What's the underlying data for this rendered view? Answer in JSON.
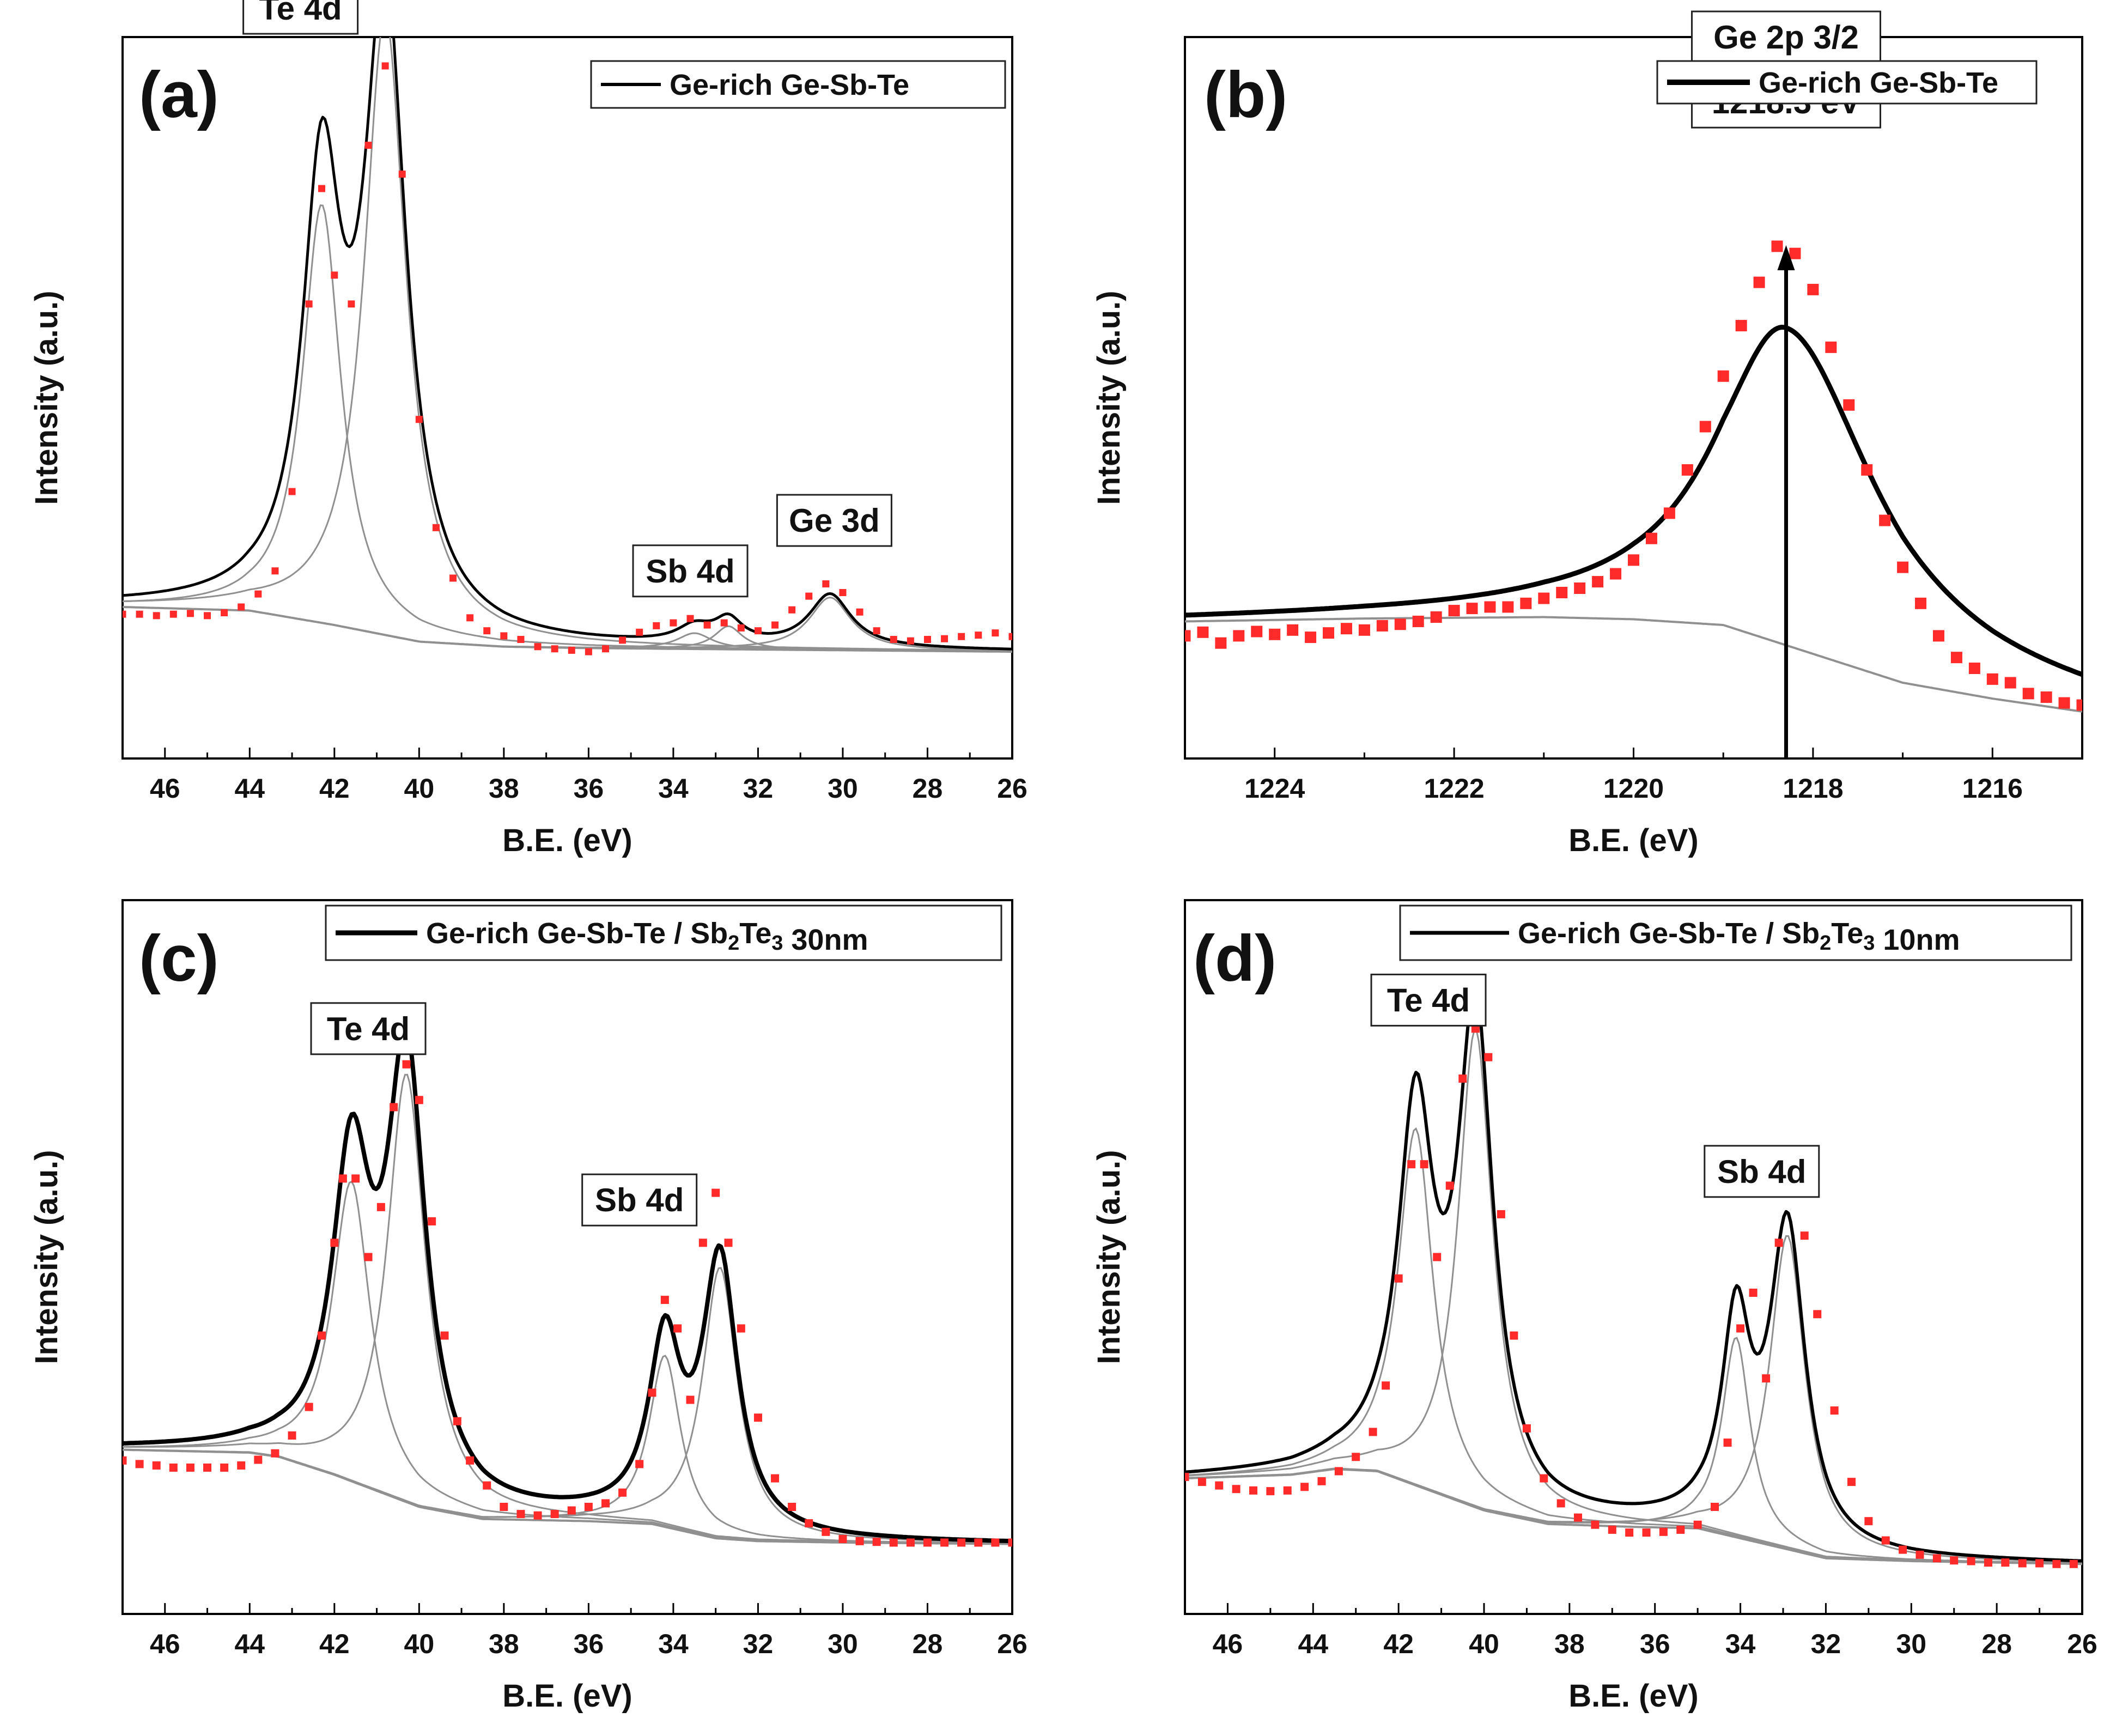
{
  "figure": {
    "background": "#ffffff",
    "marker_color": "#ff2a2a",
    "fit_color": "#000000",
    "component_color": "#909090"
  },
  "chart_data": [
    {
      "panel": "(a)",
      "type": "line",
      "xlabel": "B.E. (eV)",
      "ylabel": "Intensity (a.u.)",
      "xlim": [
        47,
        26
      ],
      "ylim": [
        0,
        100
      ],
      "x_ticks": [
        46,
        44,
        42,
        40,
        38,
        36,
        34,
        32,
        30,
        28,
        26
      ],
      "legend": "Ge-rich Ge-Sb-Te",
      "annotations": [
        {
          "text": "Te 4d",
          "x": 42.8,
          "y": 104
        },
        {
          "text": "Sb 4d",
          "x": 33.6,
          "y": 26
        },
        {
          "text": "Ge 3d",
          "x": 30.2,
          "y": 33
        }
      ],
      "background_curve": {
        "x": [
          47,
          44,
          42,
          40,
          38,
          36,
          34,
          32,
          30,
          28,
          26
        ],
        "y": [
          21,
          20.5,
          18.5,
          16.2,
          15.5,
          15.3,
          15.2,
          15.1,
          15,
          14.9,
          14.8
        ]
      },
      "components": [
        {
          "center": 42.3,
          "height": 58,
          "width": 0.55
        },
        {
          "center": 40.8,
          "height": 86,
          "width": 0.6
        },
        {
          "center": 33.5,
          "height": 2.2,
          "width": 0.5
        },
        {
          "center": 32.7,
          "height": 3.2,
          "width": 0.4
        },
        {
          "center": 30.3,
          "height": 7.3,
          "width": 0.6
        }
      ],
      "data_points": {
        "x": [
          47,
          46.6,
          46.2,
          45.8,
          45.4,
          45,
          44.6,
          44.2,
          43.8,
          43.4,
          43,
          42.6,
          42.3,
          42,
          41.6,
          41.2,
          40.8,
          40.4,
          40,
          39.6,
          39.2,
          38.8,
          38.4,
          38,
          37.6,
          37.2,
          36.8,
          36.4,
          36,
          35.6,
          35.2,
          34.8,
          34.4,
          34,
          33.6,
          33.2,
          32.8,
          32.4,
          32,
          31.6,
          31.2,
          30.8,
          30.4,
          30,
          29.6,
          29.2,
          28.8,
          28.4,
          28,
          27.6,
          27.2,
          26.8,
          26.4,
          26
        ],
        "y": [
          20,
          20,
          19.8,
          20,
          20.1,
          19.8,
          20.2,
          21,
          22.8,
          26,
          37,
          63,
          79,
          67,
          63,
          85,
          96,
          81,
          47,
          32,
          25,
          19.5,
          17.7,
          17,
          16.5,
          15.5,
          15.2,
          15,
          14.8,
          15.2,
          16.4,
          17.5,
          18.4,
          18.8,
          19.4,
          18.5,
          18.8,
          18.1,
          17.7,
          18.5,
          20.6,
          22.5,
          24.2,
          23,
          20.3,
          17.7,
          16.5,
          16.3,
          16.5,
          16.6,
          16.9,
          17.1,
          17.4,
          16.9
        ]
      }
    },
    {
      "panel": "(b)",
      "type": "line",
      "xlabel": "B.E. (eV)",
      "ylabel": "Intensity (a.u.)",
      "xlim": [
        1225,
        1215
      ],
      "ylim": [
        0,
        100
      ],
      "x_ticks": [
        1224,
        1222,
        1220,
        1218,
        1216
      ],
      "legend": "Ge-rich Ge-Sb-Te",
      "annotations": [
        {
          "text": "Ge 2p 3/2",
          "x": 1218.3,
          "y": 100
        },
        {
          "text": "1218.3 eV",
          "x": 1218.3,
          "y": 91
        }
      ],
      "peak_arrow": {
        "x": 1218.3,
        "y_from": 0,
        "y_to": 71
      },
      "background_curve": {
        "x": [
          1225,
          1223,
          1221,
          1220,
          1219,
          1218,
          1217,
          1216,
          1215
        ],
        "y": [
          19,
          19.4,
          19.6,
          19.3,
          18.5,
          14.5,
          10.5,
          8.3,
          6.5
        ]
      },
      "components": [
        {
          "center": 1218.3,
          "height": 44,
          "width": 0.95,
          "tail_right": 1.2
        }
      ],
      "data_points": {
        "x": [
          1225,
          1224.8,
          1224.6,
          1224.4,
          1224.2,
          1224,
          1223.8,
          1223.6,
          1223.4,
          1223.2,
          1223,
          1222.8,
          1222.6,
          1222.4,
          1222.2,
          1222,
          1221.8,
          1221.6,
          1221.4,
          1221.2,
          1221,
          1220.8,
          1220.6,
          1220.4,
          1220.2,
          1220,
          1219.8,
          1219.6,
          1219.4,
          1219.2,
          1219,
          1218.8,
          1218.6,
          1218.4,
          1218.2,
          1218,
          1217.8,
          1217.6,
          1217.4,
          1217.2,
          1217,
          1216.8,
          1216.6,
          1216.4,
          1216.2,
          1216,
          1215.8,
          1215.6,
          1215.4,
          1215.2,
          1215
        ],
        "y": [
          17,
          17.5,
          16,
          17,
          17.6,
          17.2,
          17.8,
          16.8,
          17.4,
          18,
          17.8,
          18.4,
          18.6,
          19,
          19.6,
          20.5,
          20.8,
          21,
          21,
          21.5,
          22.2,
          23,
          23.6,
          24.5,
          25.6,
          27.5,
          30.5,
          34,
          40,
          46,
          53,
          60,
          66,
          71,
          70,
          65,
          57,
          49,
          40,
          33,
          26.5,
          21.5,
          17,
          14,
          12.5,
          11,
          10.5,
          9,
          8.5,
          7.7,
          7.4
        ]
      }
    },
    {
      "panel": "(c)",
      "type": "line",
      "xlabel": "B.E. (eV)",
      "ylabel": "Intensity (a.u.)",
      "xlim": [
        47,
        26
      ],
      "ylim": [
        0,
        100
      ],
      "x_ticks": [
        46,
        44,
        42,
        40,
        38,
        36,
        34,
        32,
        30,
        28,
        26
      ],
      "legend": "Ge-rich Ge-Sb-Te / Sb2Te3 30nm",
      "annotations": [
        {
          "text": "Te 4d",
          "x": 41.2,
          "y": 82
        },
        {
          "text": "Sb 4d",
          "x": 34.8,
          "y": 58
        }
      ],
      "background_curve": {
        "x": [
          47,
          44,
          43.3,
          42,
          40,
          38.5,
          36,
          34.5,
          33,
          32,
          30,
          28,
          26
        ],
        "y": [
          23,
          22.6,
          22,
          19.5,
          15,
          13.3,
          13,
          12.6,
          10.6,
          10.2,
          10,
          9.9,
          9.8
        ]
      },
      "components": [
        {
          "center": 41.6,
          "height": 42,
          "width": 0.55
        },
        {
          "center": 40.3,
          "height": 60,
          "width": 0.55
        },
        {
          "center": 34.2,
          "height": 24,
          "width": 0.45
        },
        {
          "center": 32.9,
          "height": 38,
          "width": 0.5
        }
      ],
      "data_points": {
        "x": [
          47,
          46.6,
          46.2,
          45.8,
          45.4,
          45,
          44.6,
          44.2,
          43.8,
          43.4,
          43,
          42.6,
          42.3,
          42,
          41.8,
          41.5,
          41.2,
          40.9,
          40.6,
          40.3,
          40,
          39.7,
          39.4,
          39.1,
          38.8,
          38.4,
          38,
          37.6,
          37.2,
          36.8,
          36.4,
          36,
          35.6,
          35.2,
          34.8,
          34.5,
          34.2,
          33.9,
          33.6,
          33.3,
          33,
          32.7,
          32.4,
          32,
          31.6,
          31.2,
          30.8,
          30.4,
          30,
          29.6,
          29.2,
          28.8,
          28.4,
          28,
          27.6,
          27.2,
          26.8,
          26.4,
          26
        ],
        "y": [
          21.5,
          21,
          20.8,
          20.5,
          20.5,
          20.5,
          20.5,
          20.8,
          21.6,
          22.5,
          25,
          29,
          39,
          52,
          61,
          61,
          50,
          57,
          71,
          77,
          72,
          55,
          39,
          27,
          21.5,
          18,
          15,
          14,
          13.8,
          14,
          14.5,
          15,
          15.5,
          17,
          21,
          31,
          44,
          40,
          30,
          52,
          59,
          52,
          40,
          27.5,
          19,
          15,
          12.7,
          11.5,
          10.5,
          10.2,
          10.1,
          10,
          10,
          10,
          10,
          10,
          10,
          10,
          10
        ]
      }
    },
    {
      "panel": "(d)",
      "type": "line",
      "xlabel": "B.E. (eV)",
      "ylabel": "Intensity (a.u.)",
      "xlim": [
        47,
        26
      ],
      "ylim": [
        0,
        100
      ],
      "x_ticks": [
        46,
        44,
        42,
        40,
        38,
        36,
        34,
        32,
        30,
        28,
        26
      ],
      "legend": "Ge-rich Ge-Sb-Te / Sb2Te3 10nm",
      "annotations": [
        {
          "text": "Te 4d",
          "x": 41.3,
          "y": 86
        },
        {
          "text": "Sb 4d",
          "x": 33.5,
          "y": 62
        }
      ],
      "background_curve": {
        "x": [
          47,
          44.5,
          43.5,
          42.5,
          40,
          38.5,
          36.5,
          35,
          34,
          32,
          30,
          28,
          26
        ],
        "y": [
          19,
          19.5,
          20.3,
          20,
          14.5,
          12.6,
          12.2,
          12,
          10.6,
          7.8,
          7.4,
          7.2,
          7
        ]
      },
      "components": [
        {
          "center": 41.6,
          "height": 50,
          "width": 0.5
        },
        {
          "center": 40.2,
          "height": 67,
          "width": 0.5
        },
        {
          "center": 34.1,
          "height": 28,
          "width": 0.4
        },
        {
          "center": 32.9,
          "height": 44,
          "width": 0.5
        }
      ],
      "data_points": {
        "x": [
          47,
          46.6,
          46.2,
          45.8,
          45.4,
          45,
          44.6,
          44.2,
          43.8,
          43.4,
          43,
          42.6,
          42.3,
          42,
          41.7,
          41.4,
          41.1,
          40.8,
          40.5,
          40.2,
          39.9,
          39.6,
          39.3,
          39,
          38.6,
          38.2,
          37.8,
          37.4,
          37,
          36.6,
          36.2,
          35.8,
          35.4,
          35,
          34.6,
          34.3,
          34,
          33.7,
          33.4,
          33.1,
          32.8,
          32.5,
          32.2,
          31.8,
          31.4,
          31,
          30.6,
          30.2,
          29.8,
          29.4,
          29,
          28.6,
          28.2,
          27.8,
          27.4,
          27,
          26.6,
          26.2
        ],
        "y": [
          19.2,
          18.5,
          18,
          17.5,
          17.3,
          17.2,
          17.3,
          17.8,
          18.6,
          20,
          22,
          25.5,
          32,
          47,
          63,
          63,
          50,
          60,
          75,
          82,
          78,
          56,
          39,
          26,
          19,
          15.5,
          13.5,
          12.5,
          11.8,
          11.4,
          11.4,
          11.5,
          11.8,
          12.5,
          15,
          24,
          40,
          45,
          33,
          52,
          59,
          53,
          42,
          28.5,
          18.5,
          13,
          10.3,
          9,
          8.3,
          7.8,
          7.5,
          7.4,
          7.2,
          7.2,
          7.1,
          7.1,
          7,
          7
        ]
      }
    }
  ]
}
